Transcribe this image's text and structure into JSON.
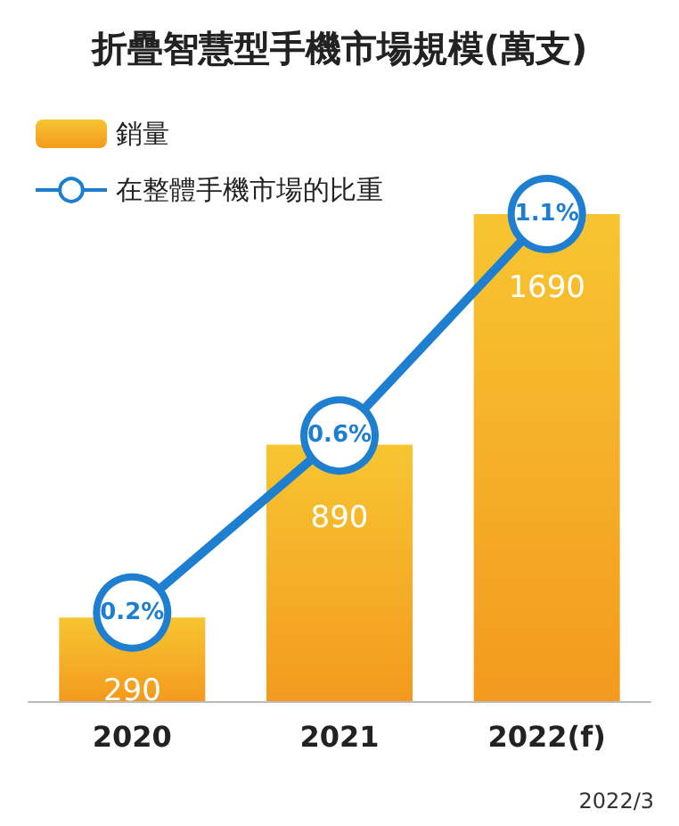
{
  "chart_data": {
    "type": "bar",
    "title": "折疊智慧型手機市場規模(萬支)",
    "categories": [
      "2020",
      "2021",
      "2022(f)"
    ],
    "series": [
      {
        "name": "銷量",
        "color": "#f39a1e",
        "values": [
          290,
          890,
          1690
        ]
      },
      {
        "name": "在整體手機市場的比重",
        "type": "line",
        "axis": "y2",
        "color": "#1e7fd0",
        "marker": "circle",
        "values": [
          0.2,
          0.6,
          1.1
        ],
        "value_labels": [
          "0.2%",
          "0.6%",
          "1.1%"
        ]
      }
    ],
    "data_labels": true,
    "legend": "top left",
    "grid": false,
    "tick_labels": "x",
    "annotations": [
      "2022/3"
    ]
  }
}
